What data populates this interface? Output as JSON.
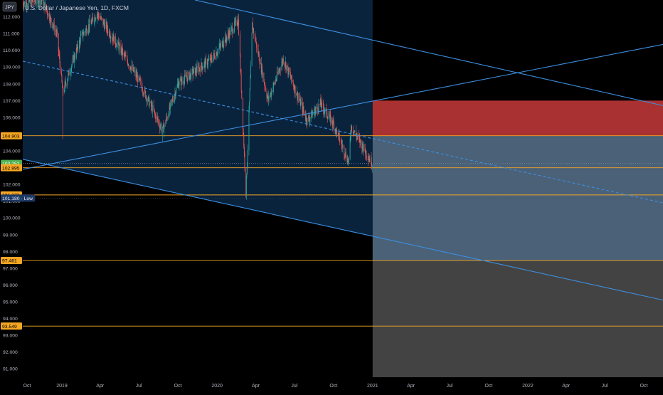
{
  "header": {
    "symbol_badge": "JPY",
    "title": "U.S. Dollar / Japanese Yen, 1D, FXCM"
  },
  "price_axis": {
    "ticks": [
      "112.000",
      "111.000",
      "110.000",
      "109.000",
      "108.000",
      "107.000",
      "106.000",
      "105.000",
      "104.000",
      "103.000",
      "102.000",
      "101.000",
      "100.000",
      "99.000",
      "98.000",
      "97.000",
      "96.000",
      "95.000",
      "94.000",
      "93.000",
      "92.000",
      "91.000"
    ],
    "badges": [
      {
        "label": "104.903",
        "value": 104.903,
        "kind": "level"
      },
      {
        "label": "103.252",
        "value": 103.252,
        "kind": "last"
      },
      {
        "label": "102.995",
        "value": 102.995,
        "kind": "level"
      },
      {
        "label": "101.373",
        "value": 101.373,
        "kind": "level"
      },
      {
        "label": "101.180 · Low",
        "value": 101.18,
        "kind": "low"
      },
      {
        "label": "97.461",
        "value": 97.461,
        "kind": "level"
      },
      {
        "label": "93.549",
        "value": 93.549,
        "kind": "level"
      }
    ]
  },
  "time_axis": {
    "labels": [
      "Oct",
      "2019",
      "Apr",
      "Jul",
      "Oct",
      "2020",
      "Apr",
      "Jul",
      "Oct",
      "2021",
      "Apr",
      "Jul",
      "Oct",
      "2022",
      "Apr",
      "Jul",
      "Oct"
    ]
  },
  "colors": {
    "up": "#26a69a",
    "down": "#ef5350",
    "level_line": "#f5a623",
    "channel_line": "#3d8fe0",
    "stop_zone": "#b23434",
    "target_zone": "#4a6178",
    "lower_zone": "#434343",
    "last_price": "#4caf50"
  },
  "chart_data": {
    "type": "candlestick",
    "symbol": "U.S. Dollar / Japanese Yen",
    "interval": "1D",
    "source": "FXCM",
    "ylim": [
      90.5,
      113
    ],
    "x_range": [
      "2018-10-01",
      "2022-11-15"
    ],
    "last_price": 103.252,
    "period_low": 101.18,
    "series_shape": [
      {
        "date": "2018-10-01",
        "close": 112.8
      },
      {
        "date": "2018-11-15",
        "close": 113.0
      },
      {
        "date": "2018-12-20",
        "close": 111.0
      },
      {
        "date": "2019-01-03",
        "close": 107.5
      },
      {
        "date": "2019-02-15",
        "close": 110.8
      },
      {
        "date": "2019-03-25",
        "close": 112.2
      },
      {
        "date": "2019-05-20",
        "close": 110.0
      },
      {
        "date": "2019-07-01",
        "close": 108.2
      },
      {
        "date": "2019-08-26",
        "close": 105.2
      },
      {
        "date": "2019-10-01",
        "close": 108.0
      },
      {
        "date": "2019-12-20",
        "close": 109.5
      },
      {
        "date": "2020-02-20",
        "close": 111.8
      },
      {
        "date": "2020-03-09",
        "close": 101.5
      },
      {
        "date": "2020-03-24",
        "close": 111.5
      },
      {
        "date": "2020-04-30",
        "close": 107.0
      },
      {
        "date": "2020-06-05",
        "close": 109.5
      },
      {
        "date": "2020-07-31",
        "close": 105.8
      },
      {
        "date": "2020-08-31",
        "close": 106.8
      },
      {
        "date": "2020-10-01",
        "close": 105.6
      },
      {
        "date": "2020-11-06",
        "close": 103.3
      },
      {
        "date": "2020-11-11",
        "close": 105.5
      },
      {
        "date": "2020-12-31",
        "close": 103.25
      }
    ],
    "horizontal_levels": [
      104.903,
      102.995,
      101.373,
      97.461,
      93.549
    ],
    "trend_lines": [
      {
        "name": "channel-upper",
        "from": {
          "date": "2019-11-10",
          "price": 113.0
        },
        "to": {
          "date": "2022-11-15",
          "price": 106.7
        }
      },
      {
        "name": "channel-lower",
        "from": {
          "date": "2018-10-01",
          "price": 103.5
        },
        "to": {
          "date": "2022-11-15",
          "price": 95.1
        }
      },
      {
        "name": "channel-mid",
        "dashed": true,
        "from": {
          "date": "2018-10-01",
          "price": 109.35
        },
        "to": {
          "date": "2022-11-15",
          "price": 100.9
        }
      },
      {
        "name": "rising-trendline",
        "from": {
          "date": "2018-10-01",
          "price": 102.9
        },
        "to": {
          "date": "2022-11-15",
          "price": 110.35
        }
      }
    ],
    "zones": [
      {
        "name": "stop",
        "from": "2021-01-01",
        "to": "2022-11-15",
        "top": 107.0,
        "bottom": 104.903
      },
      {
        "name": "target",
        "from": "2021-01-01",
        "to": "2022-11-15",
        "top": 104.903,
        "bottom": 97.461
      },
      {
        "name": "lower",
        "from": "2021-01-01",
        "to": "2022-11-15",
        "top": 97.461,
        "bottom": 90.5
      }
    ]
  }
}
